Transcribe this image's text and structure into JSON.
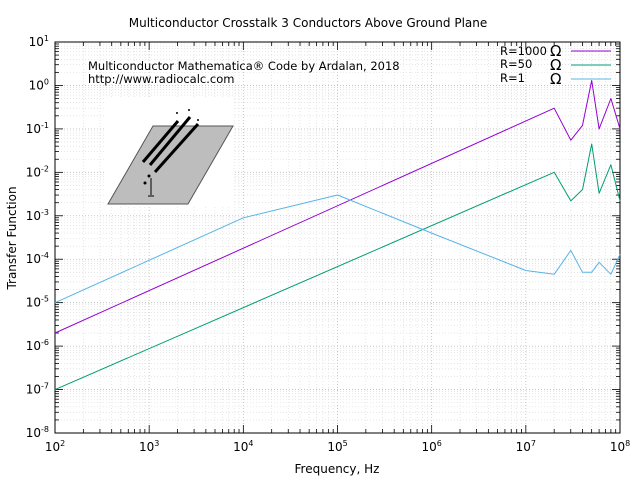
{
  "chart_data": {
    "type": "line",
    "title": "Multiconductor Crosstalk 3 Conductors Above Ground Plane",
    "xlabel": "Frequency, Hz",
    "ylabel": "Transfer Function",
    "xscale": "log",
    "yscale": "log",
    "xlim": [
      100,
      100000000
    ],
    "ylim": [
      1e-08,
      10
    ],
    "x_ticks": [
      {
        "value": 100,
        "base": "10",
        "exp": "2"
      },
      {
        "value": 1000,
        "base": "10",
        "exp": "3"
      },
      {
        "value": 10000,
        "base": "10",
        "exp": "4"
      },
      {
        "value": 100000,
        "base": "10",
        "exp": "5"
      },
      {
        "value": 1000000,
        "base": "10",
        "exp": "6"
      },
      {
        "value": 10000000,
        "base": "10",
        "exp": "7"
      },
      {
        "value": 100000000,
        "base": "10",
        "exp": "8"
      }
    ],
    "y_ticks": [
      {
        "value": 1e-08,
        "base": "10",
        "exp": "-8"
      },
      {
        "value": 1e-07,
        "base": "10",
        "exp": "-7"
      },
      {
        "value": 1e-06,
        "base": "10",
        "exp": "-6"
      },
      {
        "value": 1e-05,
        "base": "10",
        "exp": "-5"
      },
      {
        "value": 0.0001,
        "base": "10",
        "exp": "-4"
      },
      {
        "value": 0.001,
        "base": "10",
        "exp": "-3"
      },
      {
        "value": 0.01,
        "base": "10",
        "exp": "-2"
      },
      {
        "value": 0.1,
        "base": "10",
        "exp": "-1"
      },
      {
        "value": 1,
        "base": "10",
        "exp": "0"
      },
      {
        "value": 10,
        "base": "10",
        "exp": "1"
      }
    ],
    "grid": true,
    "legend_position": "top-right",
    "annotations": [
      "Multiconductor Mathematica® Code by Ardalan, 2018",
      "http://www.radiocalc.com"
    ],
    "series": [
      {
        "name": "R=1000",
        "unit_symbol": "Ω",
        "color": "#9400d3",
        "points": [
          [
            100,
            2e-06
          ],
          [
            20000000,
            0.3
          ],
          [
            30000000,
            0.055
          ],
          [
            40000000,
            0.12
          ],
          [
            50000000,
            1.3
          ],
          [
            60000000,
            0.1
          ],
          [
            80000000,
            0.5
          ],
          [
            100000000,
            0.1
          ]
        ]
      },
      {
        "name": "R=50",
        "unit_symbol": "Ω",
        "color": "#009e73",
        "points": [
          [
            100,
            1e-07
          ],
          [
            20000000,
            0.01
          ],
          [
            30000000,
            0.0022
          ],
          [
            40000000,
            0.004
          ],
          [
            50000000,
            0.045
          ],
          [
            60000000,
            0.0033
          ],
          [
            80000000,
            0.015
          ],
          [
            100000000,
            0.0022
          ]
        ]
      },
      {
        "name": "R=1",
        "unit_symbol": "Ω",
        "color": "#56b4e9",
        "points": [
          [
            100,
            1e-05
          ],
          [
            10000,
            0.0009
          ],
          [
            100000,
            0.003
          ],
          [
            1000000,
            0.0004
          ],
          [
            10000000,
            5.5e-05
          ],
          [
            20000000,
            4.5e-05
          ],
          [
            30000000,
            0.00016
          ],
          [
            40000000,
            5e-05
          ],
          [
            50000000,
            5e-05
          ],
          [
            60000000,
            8.5e-05
          ],
          [
            80000000,
            4.5e-05
          ],
          [
            100000000,
            0.00013
          ]
        ]
      }
    ]
  }
}
